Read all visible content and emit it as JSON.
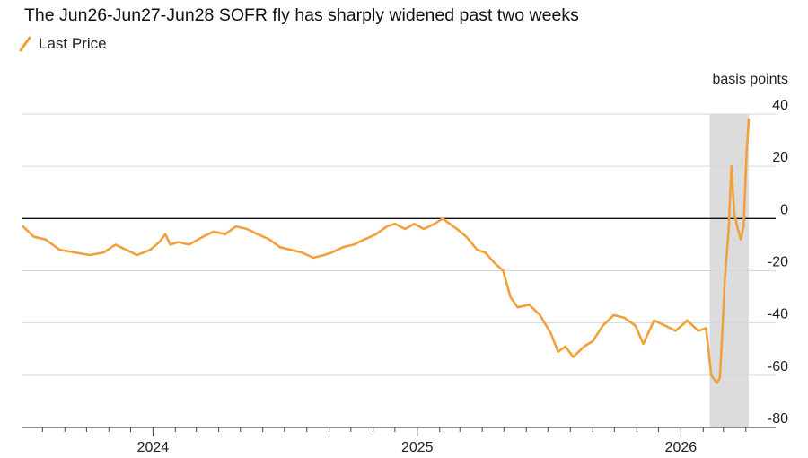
{
  "chart_data": {
    "type": "line",
    "title": "The Jun26-Jun27-Jun28 SOFR fly has sharply widened past two weeks",
    "ylabel": "basis points",
    "xlabel": "",
    "x_ticks": [
      "2024",
      "2025",
      "2026"
    ],
    "y_ticks": [
      40,
      20,
      0,
      -20,
      -40,
      -60,
      -80
    ],
    "ylim": [
      -80,
      40
    ],
    "xlim": [
      "2023-07-03",
      "2026-04-10"
    ],
    "grid": true,
    "legend_position": "top-left",
    "colors": {
      "series": "#f2a03d",
      "highlight": "#dcdcdc",
      "zero_line": "#111111",
      "grid": "#d6d6d6"
    },
    "highlight_range": [
      "2026-02-10",
      "2026-04-05"
    ],
    "series": [
      {
        "name": "Last Price",
        "points": [
          [
            "2023-07-05",
            -3
          ],
          [
            "2023-07-20",
            -7
          ],
          [
            "2023-08-05",
            -8
          ],
          [
            "2023-08-25",
            -12
          ],
          [
            "2023-09-15",
            -13
          ],
          [
            "2023-10-05",
            -14
          ],
          [
            "2023-10-25",
            -13
          ],
          [
            "2023-11-10",
            -10
          ],
          [
            "2023-11-25",
            -12
          ],
          [
            "2023-12-10",
            -14
          ],
          [
            "2023-12-28",
            -12
          ],
          [
            "2024-01-10",
            -9
          ],
          [
            "2024-01-18",
            -6
          ],
          [
            "2024-01-25",
            -10
          ],
          [
            "2024-02-05",
            -9
          ],
          [
            "2024-02-20",
            -10
          ],
          [
            "2024-03-10",
            -7
          ],
          [
            "2024-03-25",
            -5
          ],
          [
            "2024-04-10",
            -6
          ],
          [
            "2024-04-25",
            -3
          ],
          [
            "2024-05-10",
            -4
          ],
          [
            "2024-05-25",
            -6
          ],
          [
            "2024-06-10",
            -8
          ],
          [
            "2024-06-25",
            -11
          ],
          [
            "2024-07-10",
            -12
          ],
          [
            "2024-07-25",
            -13
          ],
          [
            "2024-08-10",
            -15
          ],
          [
            "2024-08-25",
            -14
          ],
          [
            "2024-09-05",
            -13
          ],
          [
            "2024-09-20",
            -11
          ],
          [
            "2024-10-05",
            -10
          ],
          [
            "2024-10-20",
            -8
          ],
          [
            "2024-11-05",
            -6
          ],
          [
            "2024-11-20",
            -3
          ],
          [
            "2024-12-01",
            -2
          ],
          [
            "2024-12-15",
            -4
          ],
          [
            "2024-12-28",
            -2
          ],
          [
            "2025-01-10",
            -4
          ],
          [
            "2025-01-25",
            -2
          ],
          [
            "2025-02-05",
            0
          ],
          [
            "2025-02-15",
            -2
          ],
          [
            "2025-02-25",
            -4
          ],
          [
            "2025-03-10",
            -7
          ],
          [
            "2025-03-25",
            -12
          ],
          [
            "2025-04-05",
            -13
          ],
          [
            "2025-04-18",
            -17
          ],
          [
            "2025-04-30",
            -20
          ],
          [
            "2025-05-10",
            -30
          ],
          [
            "2025-05-20",
            -34
          ],
          [
            "2025-06-05",
            -33
          ],
          [
            "2025-06-20",
            -37
          ],
          [
            "2025-07-05",
            -44
          ],
          [
            "2025-07-15",
            -51
          ],
          [
            "2025-07-25",
            -49
          ],
          [
            "2025-08-05",
            -53
          ],
          [
            "2025-08-20",
            -49
          ],
          [
            "2025-09-01",
            -47
          ],
          [
            "2025-09-15",
            -41
          ],
          [
            "2025-09-30",
            -37
          ],
          [
            "2025-10-15",
            -38
          ],
          [
            "2025-10-30",
            -41
          ],
          [
            "2025-11-10",
            -48
          ],
          [
            "2025-11-25",
            -39
          ],
          [
            "2025-12-10",
            -41
          ],
          [
            "2025-12-25",
            -43
          ],
          [
            "2026-01-10",
            -39
          ],
          [
            "2026-01-25",
            -43
          ],
          [
            "2026-02-05",
            -42
          ],
          [
            "2026-02-12",
            -60
          ],
          [
            "2026-02-20",
            -63
          ],
          [
            "2026-02-24",
            -61
          ],
          [
            "2026-02-27",
            -46
          ],
          [
            "2026-03-03",
            -23
          ],
          [
            "2026-03-08",
            -5
          ],
          [
            "2026-03-12",
            20
          ],
          [
            "2026-03-16",
            2
          ],
          [
            "2026-03-20",
            -3
          ],
          [
            "2026-03-25",
            -8
          ],
          [
            "2026-03-29",
            -3
          ],
          [
            "2026-04-02",
            25
          ],
          [
            "2026-04-05",
            38
          ]
        ]
      }
    ]
  }
}
